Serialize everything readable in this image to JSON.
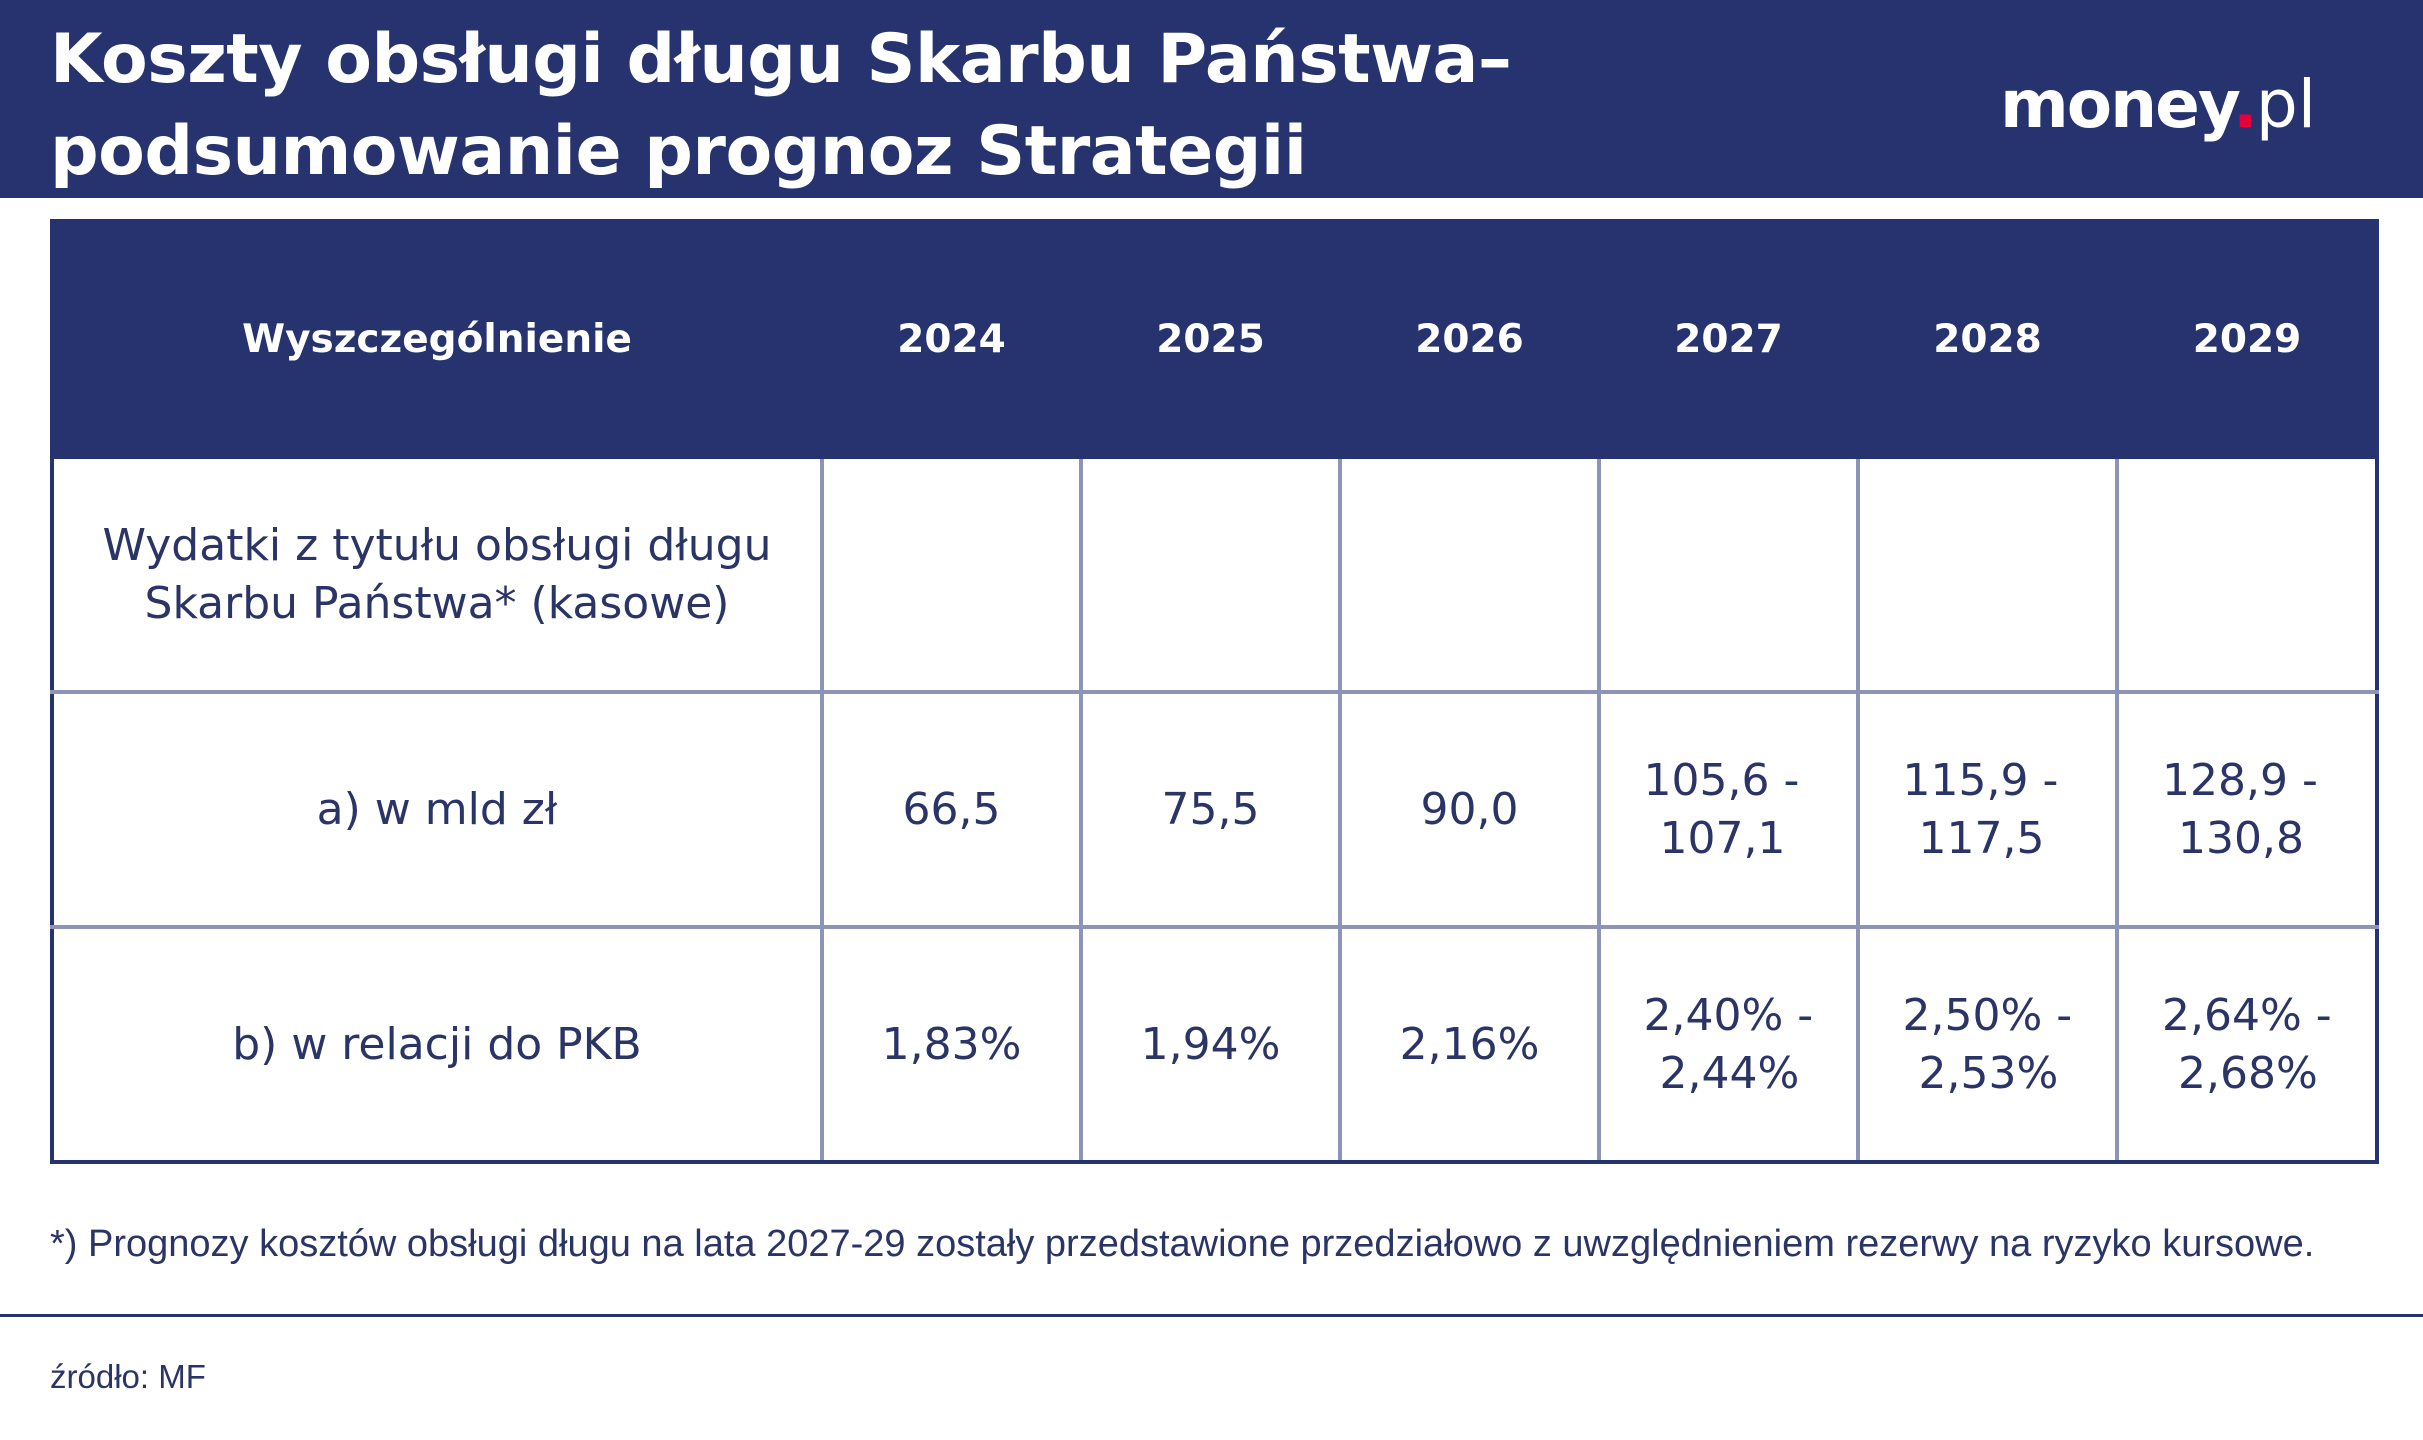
{
  "header": {
    "title_line1": "Koszty obsługi długu Skarbu Państwa–",
    "title_line2": "podsumowanie prognoz Strategii",
    "logo": {
      "name": "money",
      "dot": ".",
      "tld": "pl",
      "accent_color": "#e4003a"
    },
    "background_color": "#26336e"
  },
  "table": {
    "columns": [
      "Wyszczególnienie",
      "2024",
      "2025",
      "2026",
      "2027",
      "2028",
      "2029"
    ],
    "rows": [
      {
        "label": "Wydatki z tytułu obsługi długu Skarbu Państwa* (kasowe)",
        "cells": [
          "",
          "",
          "",
          "",
          "",
          ""
        ]
      },
      {
        "label": "a) w mld zł",
        "cells": [
          {
            "line1": "66,5"
          },
          {
            "line1": "75,5"
          },
          {
            "line1": "90,0"
          },
          {
            "line1": "105,6 -",
            "line2": "107,1"
          },
          {
            "line1": "115,9 -",
            "line2": "117,5"
          },
          {
            "line1": "128,9 -",
            "line2": "130,8"
          }
        ]
      },
      {
        "label": "b) w relacji do PKB",
        "cells": [
          {
            "line1": "1,83%"
          },
          {
            "line1": "1,94%"
          },
          {
            "line1": "2,16%"
          },
          {
            "line1": "2,40% -",
            "line2": "2,44%"
          },
          {
            "line1": "2,50% -",
            "line2": "2,53%"
          },
          {
            "line1": "2,64% -",
            "line2": "2,68%"
          }
        ]
      }
    ]
  },
  "footnote": "*) Prognozy kosztów obsługi długu na lata 2027-29 zostały przedstawione przedziałowo z uwzględnieniem rezerwy na ryzyko kursowe.",
  "source": "źródło: MF",
  "colors": {
    "navy": "#26336e",
    "text": "#2b3467",
    "grid": "#8d94b5"
  }
}
